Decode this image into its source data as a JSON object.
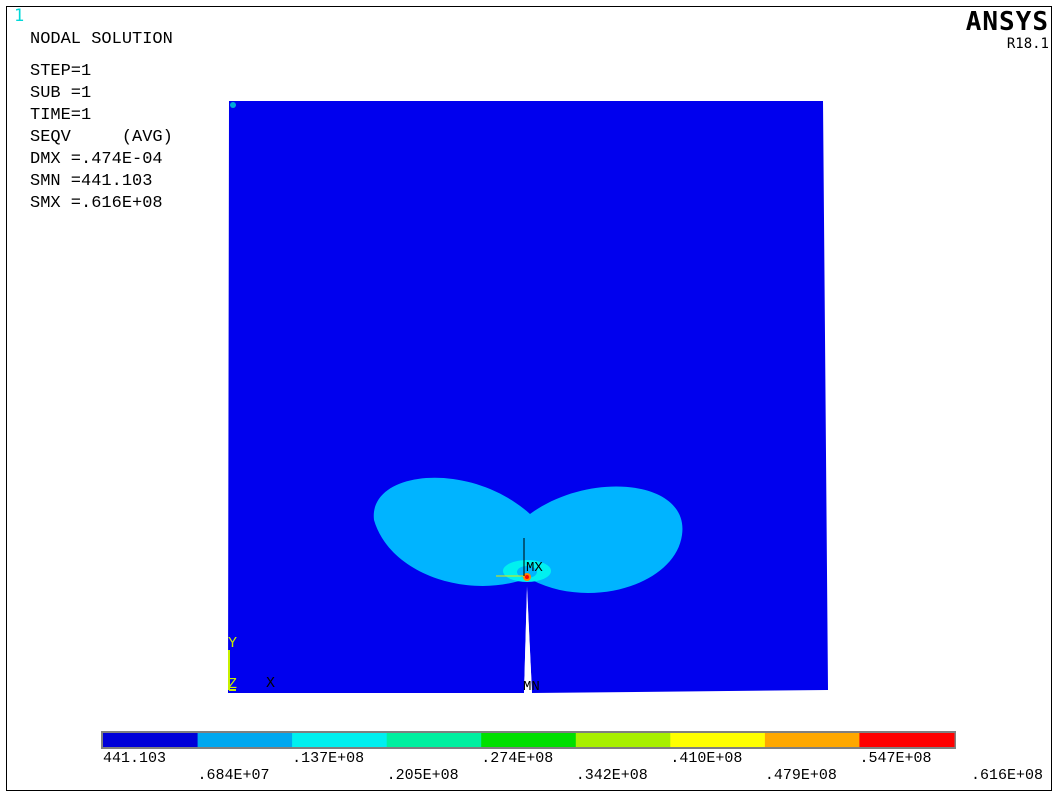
{
  "window_number": "1",
  "brand": {
    "name": "ANSYS",
    "release": "R18.1"
  },
  "info": {
    "title": "NODAL SOLUTION",
    "lines": [
      "STEP=1",
      "SUB =1",
      "TIME=1",
      "SEQV     (AVG)",
      "DMX =.474E-04",
      "SMN =441.103",
      "SMX =.616E+08"
    ]
  },
  "plot_labels": {
    "max": "MX",
    "min": "MN",
    "axis_y": "Y",
    "axis_z": "Z",
    "axis_x": "X"
  },
  "colors": {
    "background": "#ffffff",
    "plate": "#0000ee",
    "band2": "#00b4ff",
    "band3": "#00f0f0",
    "hot": "#ff0000",
    "axes": "#c8f000"
  },
  "legend": {
    "bands": [
      "#0000d8",
      "#00a8f0",
      "#00f0f0",
      "#00f0a0",
      "#00e000",
      "#a8f000",
      "#ffff00",
      "#ffa800",
      "#ff0000"
    ],
    "ticks_top": [
      "441.103",
      ".137E+08",
      ".274E+08",
      ".410E+08",
      ".547E+08"
    ],
    "ticks_bottom": [
      ".684E+07",
      ".205E+08",
      ".342E+08",
      ".479E+08",
      ".616E+08"
    ]
  }
}
